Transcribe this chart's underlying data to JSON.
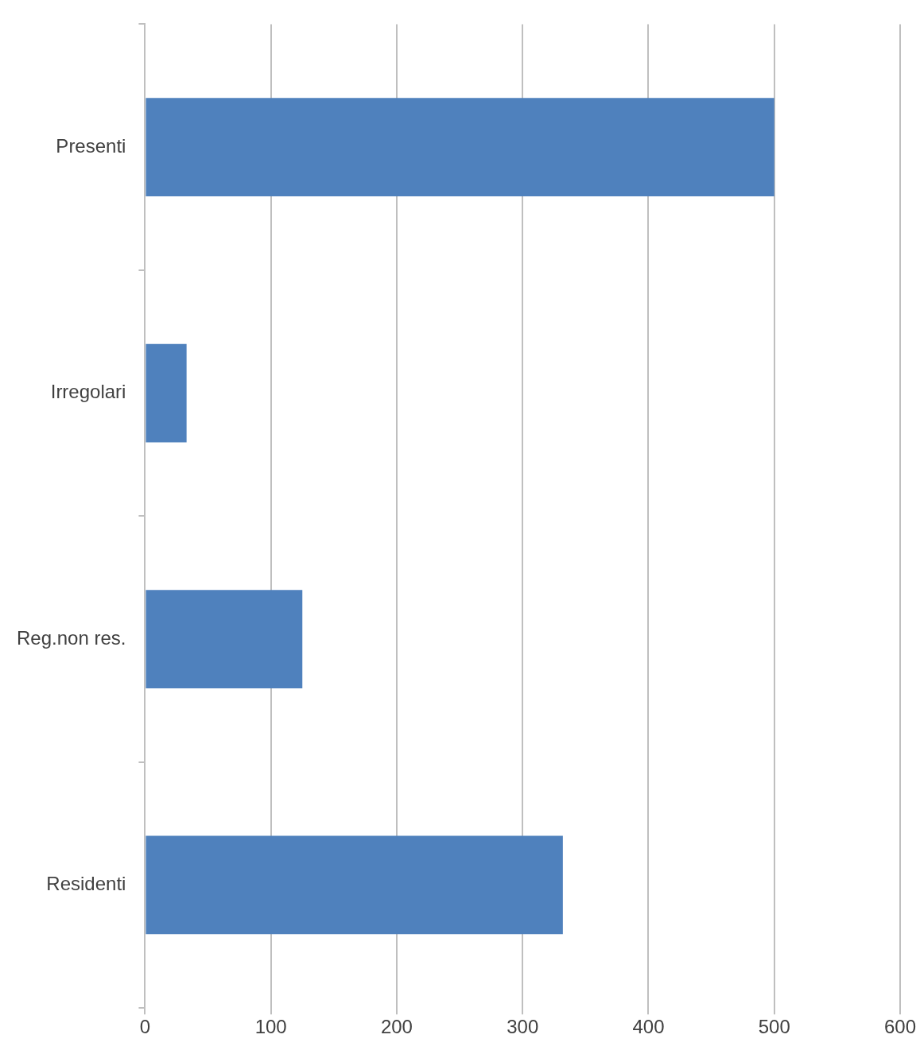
{
  "chart_data": {
    "type": "bar",
    "orientation": "horizontal",
    "categories": [
      "Presenti",
      "Irregolari",
      "Reg.non res.",
      "Residenti"
    ],
    "values": [
      500,
      33,
      125,
      332
    ],
    "color": "#4f81bd",
    "xlim": [
      0,
      600
    ],
    "xticks": [
      0,
      100,
      200,
      300,
      400,
      500,
      600
    ],
    "grid": "x"
  }
}
